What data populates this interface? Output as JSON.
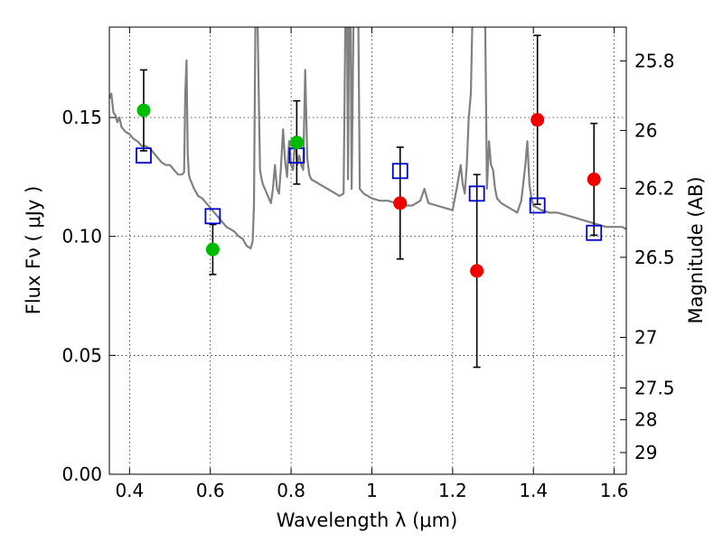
{
  "chart_data": {
    "type": "scatter",
    "xlabel": "Wavelength  λ (μm)",
    "ylabel": "Flux  Fν  ( μJy )",
    "y2label": "Magnitude (AB)",
    "xlim": [
      0.35,
      1.63
    ],
    "ylim": [
      0.0,
      0.188
    ],
    "grid": true,
    "x_ticks": [
      0.4,
      0.6,
      0.8,
      1.0,
      1.2,
      1.4,
      1.6
    ],
    "x_tick_labels": [
      "0.4",
      "0.6",
      "0.8",
      "1",
      "1.2",
      "1.4",
      "1.6"
    ],
    "y_ticks": [
      0.0,
      0.05,
      0.1,
      0.15
    ],
    "y_tick_labels": [
      "0.00",
      "0.05",
      "0.10",
      "0.15"
    ],
    "mag_ticks": [
      25.8,
      26,
      26.2,
      26.5,
      27,
      27.5,
      28,
      29
    ],
    "mag_tick_labels": [
      "25.8",
      "26",
      "26.2",
      "26.5",
      "27",
      "27.5",
      "28",
      "29"
    ],
    "colors": {
      "sed": "#808080",
      "green": "#00bb00",
      "red": "#ee0000",
      "model": "#0000cc",
      "errorbar": "#000000"
    },
    "series": [
      {
        "marker": "circle",
        "color": "green",
        "points": [
          {
            "x": 0.435,
            "y": 0.153,
            "err_low": 0.017,
            "err_high": 0.017
          },
          {
            "x": 0.606,
            "y": 0.0945,
            "err_low": 0.0105,
            "err_high": 0.0105
          },
          {
            "x": 0.814,
            "y": 0.1395,
            "err_low": 0.0175,
            "err_high": 0.0175
          }
        ]
      },
      {
        "marker": "circle",
        "color": "red",
        "points": [
          {
            "x": 1.07,
            "y": 0.114,
            "err_low": 0.0235,
            "err_high": 0.0235
          },
          {
            "x": 1.26,
            "y": 0.0855,
            "err_low": 0.0405,
            "err_high": 0.0405
          },
          {
            "x": 1.41,
            "y": 0.149,
            "err_low": 0.0355,
            "err_high": 0.0355
          },
          {
            "x": 1.55,
            "y": 0.124,
            "err_low": 0.0235,
            "err_high": 0.0235
          }
        ]
      },
      {
        "marker": "square",
        "color": "model",
        "points": [
          {
            "x": 0.435,
            "y": 0.134
          },
          {
            "x": 0.606,
            "y": 0.1085
          },
          {
            "x": 0.814,
            "y": 0.134
          },
          {
            "x": 1.07,
            "y": 0.1275
          },
          {
            "x": 1.26,
            "y": 0.118
          },
          {
            "x": 1.41,
            "y": 0.113
          },
          {
            "x": 1.55,
            "y": 0.1015
          }
        ]
      }
    ],
    "sed_curve": {
      "x": [
        0.35,
        0.355,
        0.36,
        0.365,
        0.37,
        0.375,
        0.38,
        0.39,
        0.4,
        0.41,
        0.42,
        0.43,
        0.44,
        0.45,
        0.46,
        0.47,
        0.48,
        0.49,
        0.5,
        0.51,
        0.52,
        0.53,
        0.535,
        0.538,
        0.541,
        0.544,
        0.547,
        0.55,
        0.56,
        0.57,
        0.58,
        0.59,
        0.6,
        0.61,
        0.62,
        0.63,
        0.64,
        0.65,
        0.66,
        0.67,
        0.68,
        0.69,
        0.7,
        0.705,
        0.708,
        0.712,
        0.716,
        0.72,
        0.723,
        0.727,
        0.73,
        0.735,
        0.74,
        0.745,
        0.75,
        0.755,
        0.76,
        0.765,
        0.77,
        0.775,
        0.78,
        0.785,
        0.79,
        0.795,
        0.8,
        0.805,
        0.81,
        0.815,
        0.82,
        0.825,
        0.83,
        0.835,
        0.84,
        0.845,
        0.85,
        0.86,
        0.87,
        0.88,
        0.89,
        0.9,
        0.91,
        0.92,
        0.93,
        0.935,
        0.938,
        0.941,
        0.944,
        0.947,
        0.95,
        0.955,
        0.958,
        0.962,
        0.966,
        0.97,
        0.975,
        0.98,
        0.99,
        1.0,
        1.02,
        1.04,
        1.06,
        1.08,
        1.1,
        1.12,
        1.13,
        1.14,
        1.16,
        1.18,
        1.2,
        1.21,
        1.22,
        1.225,
        1.23,
        1.235,
        1.24,
        1.245,
        1.25,
        1.255,
        1.26,
        1.265,
        1.27,
        1.275,
        1.28,
        1.285,
        1.29,
        1.295,
        1.3,
        1.305,
        1.31,
        1.32,
        1.33,
        1.34,
        1.35,
        1.36,
        1.37,
        1.38,
        1.385,
        1.39,
        1.395,
        1.4,
        1.41,
        1.42,
        1.44,
        1.46,
        1.48,
        1.5,
        1.52,
        1.54,
        1.56,
        1.58,
        1.6,
        1.62,
        1.63
      ],
      "y": [
        0.158,
        0.16,
        0.152,
        0.151,
        0.148,
        0.15,
        0.146,
        0.144,
        0.143,
        0.141,
        0.14,
        0.138,
        0.138,
        0.137,
        0.135,
        0.133,
        0.131,
        0.13,
        0.13,
        0.128,
        0.126,
        0.126,
        0.127,
        0.16,
        0.174,
        0.135,
        0.126,
        0.124,
        0.12,
        0.117,
        0.116,
        0.114,
        0.112,
        0.11,
        0.108,
        0.106,
        0.104,
        0.103,
        0.102,
        0.1,
        0.099,
        0.096,
        0.095,
        0.098,
        0.113,
        0.2,
        0.2,
        0.16,
        0.128,
        0.124,
        0.122,
        0.12,
        0.118,
        0.116,
        0.114,
        0.12,
        0.13,
        0.12,
        0.118,
        0.129,
        0.145,
        0.132,
        0.125,
        0.14,
        0.13,
        0.128,
        0.142,
        0.13,
        0.134,
        0.13,
        0.128,
        0.17,
        0.133,
        0.126,
        0.124,
        0.123,
        0.122,
        0.121,
        0.12,
        0.119,
        0.118,
        0.117,
        0.118,
        0.2,
        0.2,
        0.124,
        0.2,
        0.2,
        0.12,
        0.2,
        0.2,
        0.2,
        0.2,
        0.12,
        0.119,
        0.118,
        0.117,
        0.116,
        0.115,
        0.115,
        0.114,
        0.113,
        0.113,
        0.115,
        0.12,
        0.114,
        0.113,
        0.112,
        0.111,
        0.12,
        0.13,
        0.122,
        0.118,
        0.13,
        0.15,
        0.16,
        0.2,
        0.2,
        0.2,
        0.2,
        0.2,
        0.2,
        0.2,
        0.12,
        0.14,
        0.13,
        0.128,
        0.12,
        0.116,
        0.114,
        0.113,
        0.112,
        0.111,
        0.11,
        0.115,
        0.13,
        0.14,
        0.122,
        0.116,
        0.113,
        0.112,
        0.111,
        0.11,
        0.11,
        0.109,
        0.108,
        0.107,
        0.106,
        0.105,
        0.104,
        0.104,
        0.104,
        0.103
      ]
    }
  }
}
